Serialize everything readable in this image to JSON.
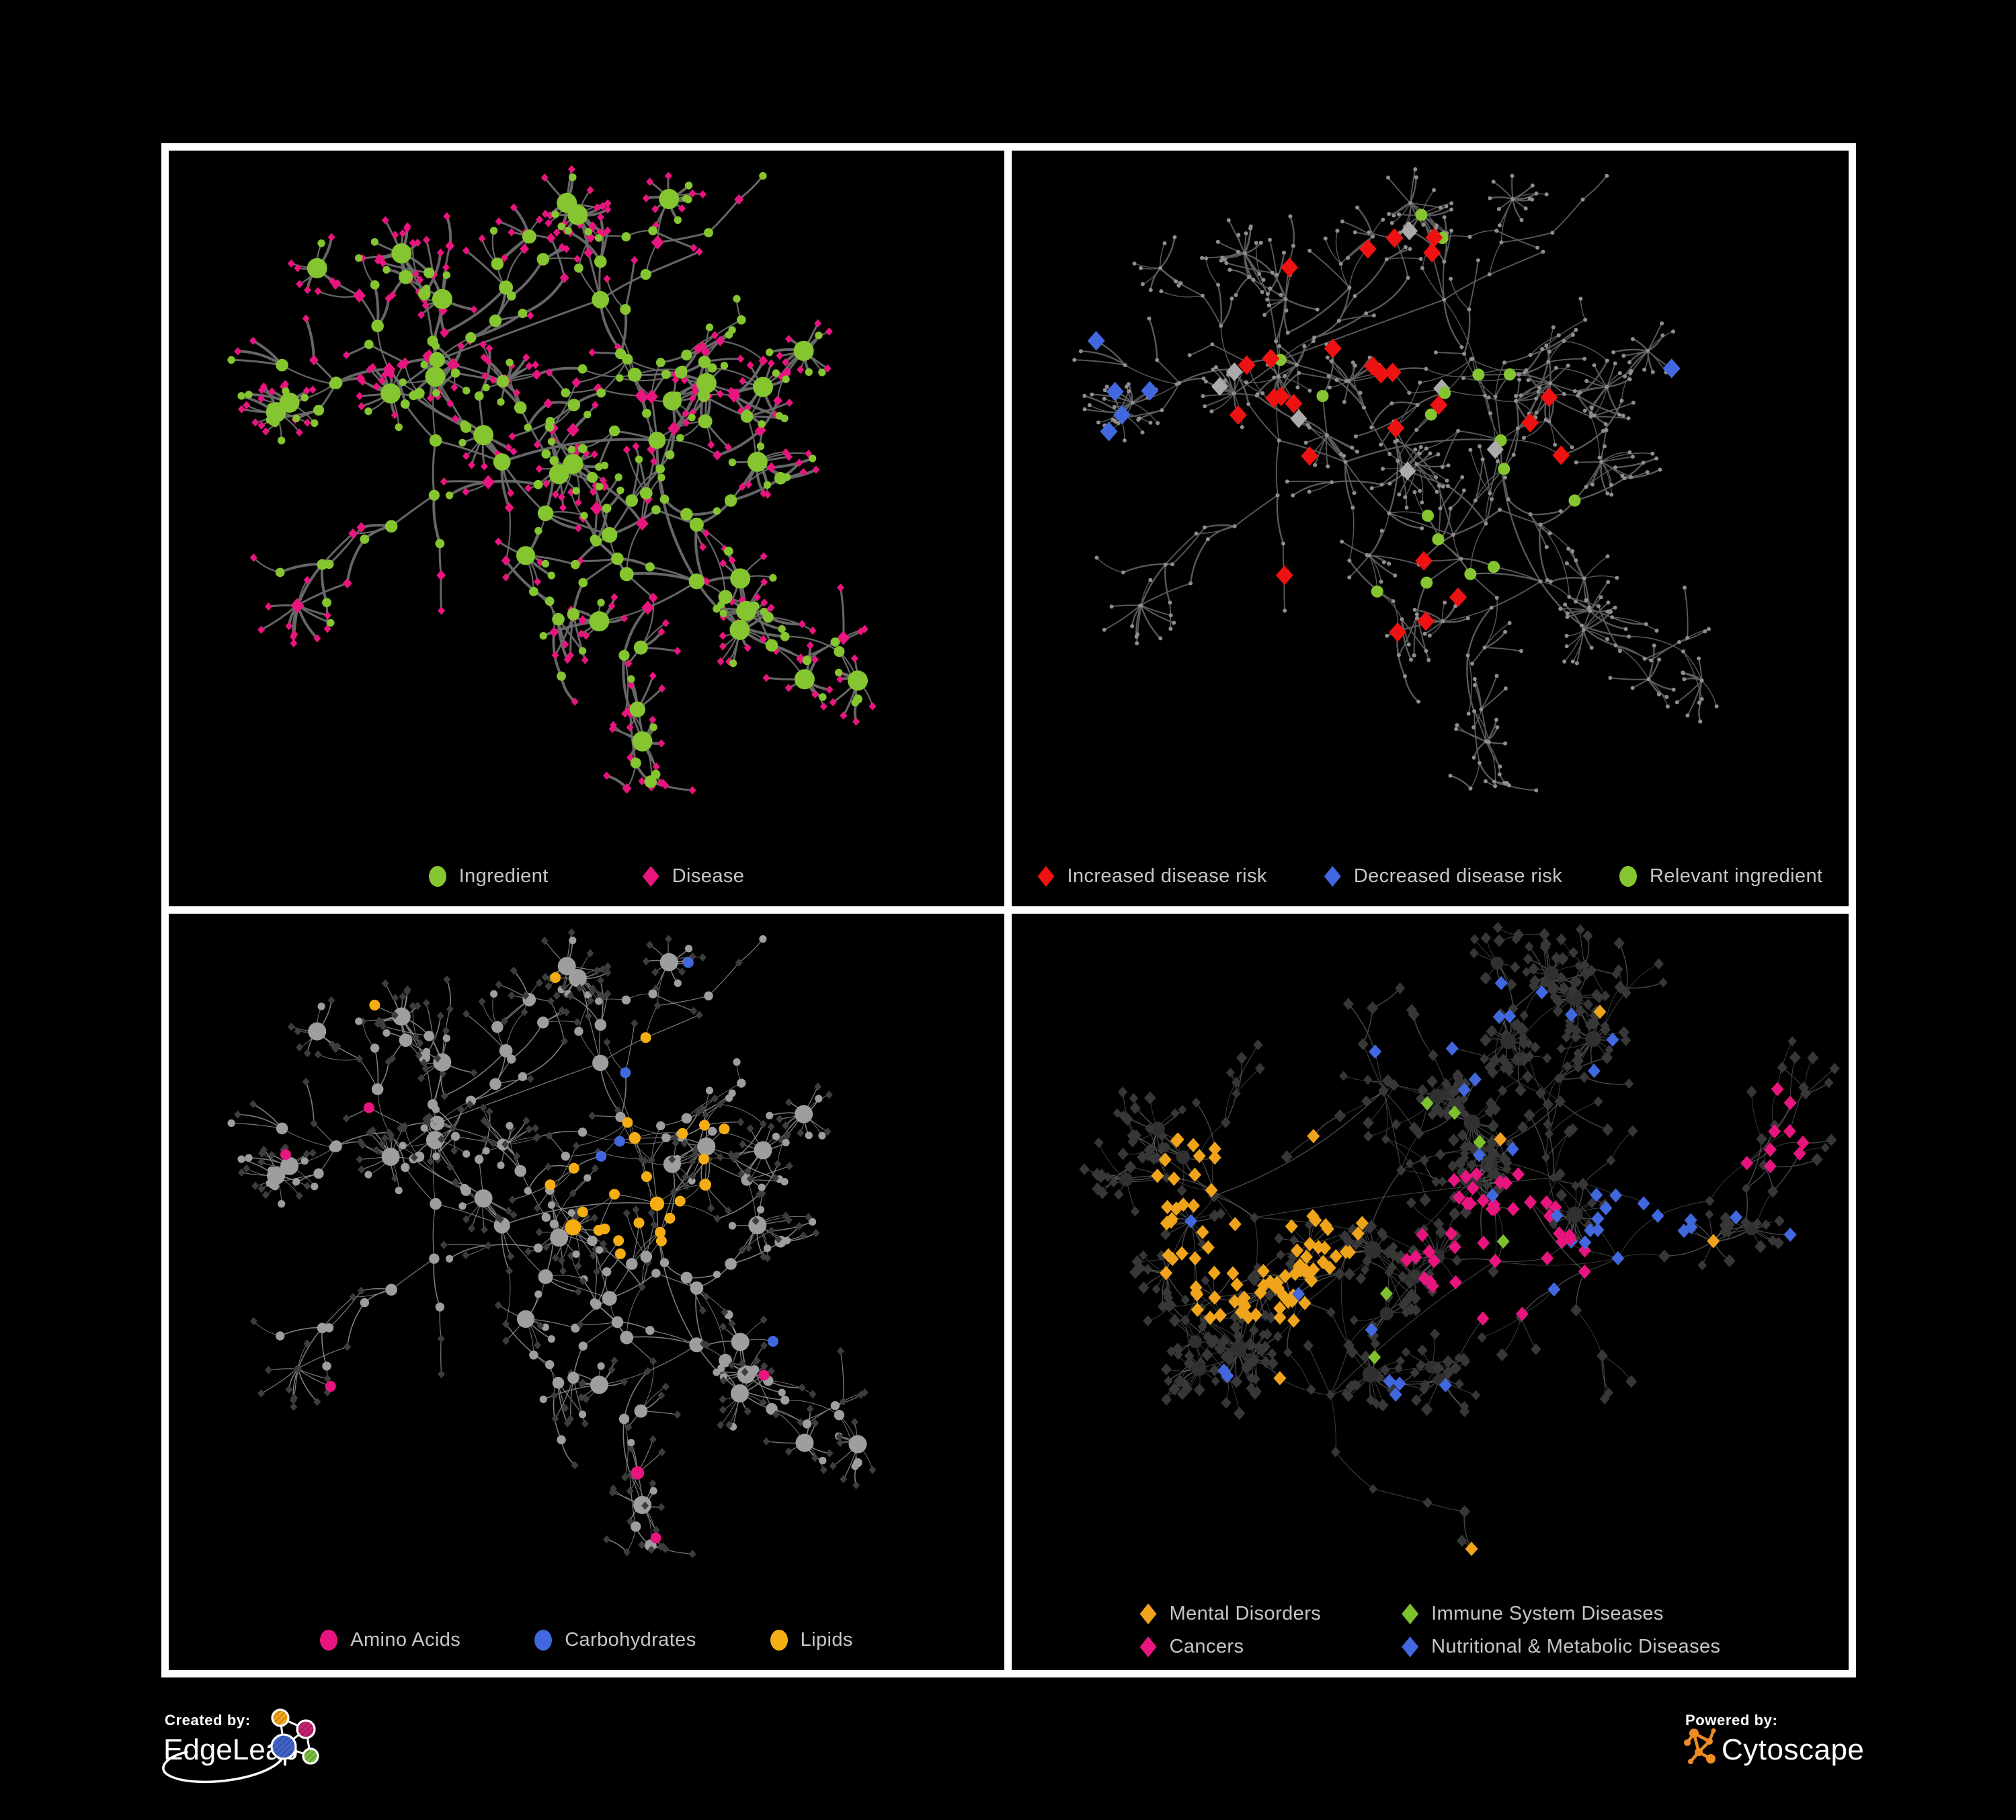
{
  "figure": {
    "background": "#000000",
    "frame_color": "#FFFFFF"
  },
  "panels": [
    {
      "id": "ingredient-disease",
      "legend": [
        {
          "shape": "circle",
          "color": "#85C530",
          "label": "Ingredient"
        },
        {
          "shape": "diamond",
          "color": "#E8157F",
          "label": "Disease"
        }
      ]
    },
    {
      "id": "disease-risk",
      "legend": [
        {
          "shape": "diamond",
          "color": "#EE1212",
          "label": "Increased disease risk"
        },
        {
          "shape": "diamond",
          "color": "#4268DF",
          "label": "Decreased disease risk"
        },
        {
          "shape": "circle",
          "color": "#85C530",
          "label": "Relevant ingredient"
        }
      ]
    },
    {
      "id": "macronutrient-classes",
      "legend": [
        {
          "shape": "circle",
          "color": "#E8157F",
          "label": "Amino Acids"
        },
        {
          "shape": "circle",
          "color": "#4268DF",
          "label": "Carbohydrates"
        },
        {
          "shape": "circle",
          "color": "#F5AD14",
          "label": "Lipids"
        }
      ]
    },
    {
      "id": "disease-categories",
      "legend": [
        {
          "shape": "diamond",
          "color": "#F0A41C",
          "label": "Mental Disorders"
        },
        {
          "shape": "diamond",
          "color": "#7DC22E",
          "label": "Immune System Diseases"
        },
        {
          "shape": "diamond",
          "color": "#E8157F",
          "label": "Cancers"
        },
        {
          "shape": "diamond",
          "color": "#4268DF",
          "label": "Nutritional & Metabolic Diseases"
        }
      ]
    }
  ],
  "network_palette": {
    "edge_gray_strong": "#6B6B6B",
    "edge_gray_soft": "#5E5E5E",
    "edge_gray_light": "#9C9C9C",
    "edge_gray_faint": "#8F8F8F",
    "node_tiny_gray": "#8E8E8E",
    "node_gray_circle": "#9E9E9E",
    "node_dark_diamond": "#3D3D3D",
    "node_p4_dark": "#373737",
    "node_hub_dark": "#303030",
    "node_neutral_diamond": "#ABABAB"
  },
  "branding": {
    "created_by": {
      "label": "Created by:",
      "name": "EdgeLeap"
    },
    "powered_by": {
      "label": "Powered by:",
      "name": "Cytoscape"
    },
    "cytoscape_orange": "#EE8B22",
    "edgeleap_logo_colors": {
      "orange": "#F0A41C",
      "pink": "#C2226E",
      "blue": "#4063C8",
      "green": "#77BE43"
    }
  }
}
